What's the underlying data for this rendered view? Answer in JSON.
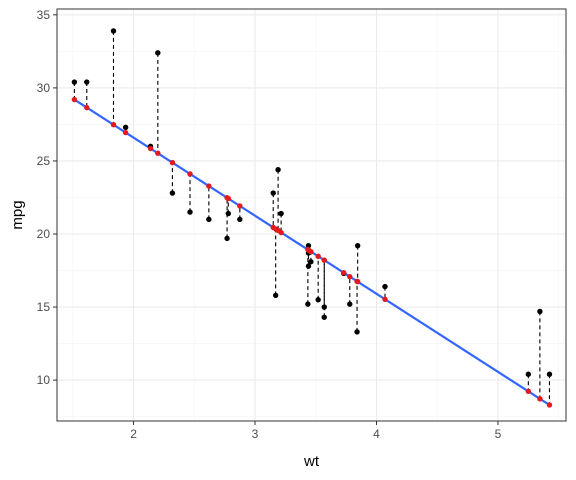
{
  "chart_data": {
    "type": "scatter",
    "xlabel": "wt",
    "ylabel": "mpg",
    "xlim": [
      1.37,
      5.56
    ],
    "ylim": [
      7.2,
      35.4
    ],
    "x_ticks": [
      2,
      3,
      4,
      5
    ],
    "y_ticks": [
      10,
      15,
      20,
      25,
      30,
      35
    ],
    "grid": true,
    "legend": "none",
    "colors": {
      "observed": "#000000",
      "fitted": "#e41a1c",
      "regression_line": "#3366ff",
      "residual": "#000000",
      "grid_major": "#ebebeb",
      "grid_minor": "#f5f5f5",
      "panel_border": "#333333"
    },
    "regression_line": {
      "intercept": 37.285,
      "slope": -5.344
    },
    "points": [
      {
        "x": 2.62,
        "observed": 21.0,
        "fitted": 23.28
      },
      {
        "x": 2.875,
        "observed": 21.0,
        "fitted": 21.92
      },
      {
        "x": 2.32,
        "observed": 22.8,
        "fitted": 24.89
      },
      {
        "x": 3.215,
        "observed": 21.4,
        "fitted": 20.1
      },
      {
        "x": 3.44,
        "observed": 18.7,
        "fitted": 18.9
      },
      {
        "x": 3.46,
        "observed": 18.1,
        "fitted": 18.79
      },
      {
        "x": 3.57,
        "observed": 14.3,
        "fitted": 18.21
      },
      {
        "x": 3.19,
        "observed": 24.4,
        "fitted": 20.24
      },
      {
        "x": 3.15,
        "observed": 22.8,
        "fitted": 20.45
      },
      {
        "x": 3.44,
        "observed": 19.2,
        "fitted": 18.9
      },
      {
        "x": 3.44,
        "observed": 17.8,
        "fitted": 18.9
      },
      {
        "x": 4.07,
        "observed": 16.4,
        "fitted": 15.53
      },
      {
        "x": 3.73,
        "observed": 17.3,
        "fitted": 17.35
      },
      {
        "x": 3.78,
        "observed": 15.2,
        "fitted": 17.08
      },
      {
        "x": 5.25,
        "observed": 10.4,
        "fitted": 9.23
      },
      {
        "x": 5.424,
        "observed": 10.4,
        "fitted": 8.3
      },
      {
        "x": 5.345,
        "observed": 14.7,
        "fitted": 8.72
      },
      {
        "x": 2.2,
        "observed": 32.4,
        "fitted": 25.53
      },
      {
        "x": 1.615,
        "observed": 30.4,
        "fitted": 28.65
      },
      {
        "x": 1.835,
        "observed": 33.9,
        "fitted": 27.48
      },
      {
        "x": 2.465,
        "observed": 21.5,
        "fitted": 24.11
      },
      {
        "x": 3.52,
        "observed": 15.5,
        "fitted": 18.47
      },
      {
        "x": 3.435,
        "observed": 15.2,
        "fitted": 18.93
      },
      {
        "x": 3.84,
        "observed": 13.3,
        "fitted": 16.76
      },
      {
        "x": 3.845,
        "observed": 19.2,
        "fitted": 16.74
      },
      {
        "x": 1.935,
        "observed": 27.3,
        "fitted": 26.94
      },
      {
        "x": 2.14,
        "observed": 26.0,
        "fitted": 25.85
      },
      {
        "x": 1.513,
        "observed": 30.4,
        "fitted": 29.2
      },
      {
        "x": 3.17,
        "observed": 15.8,
        "fitted": 20.34
      },
      {
        "x": 2.77,
        "observed": 19.7,
        "fitted": 22.48
      },
      {
        "x": 3.57,
        "observed": 15.0,
        "fitted": 18.21
      },
      {
        "x": 2.78,
        "observed": 21.4,
        "fitted": 22.43
      }
    ]
  }
}
